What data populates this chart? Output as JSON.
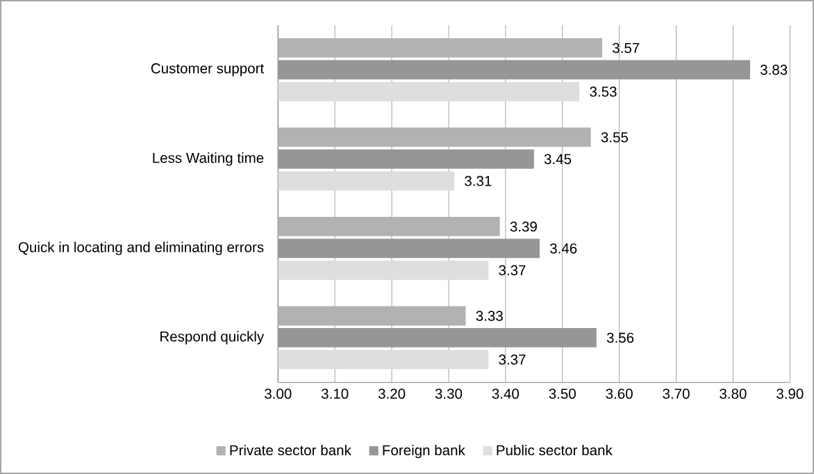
{
  "chart_data": {
    "type": "bar",
    "orientation": "horizontal",
    "categories": [
      "Customer support",
      "Less Waiting time",
      "Quick in locating and eliminating errors",
      "Respond quickly"
    ],
    "series": [
      {
        "name": "Private sector bank",
        "color": "#b2b2b2",
        "values": [
          3.57,
          3.55,
          3.39,
          3.33
        ]
      },
      {
        "name": "Foreign bank",
        "color": "#969696",
        "values": [
          3.83,
          3.45,
          3.46,
          3.56
        ]
      },
      {
        "name": "Public sector bank",
        "color": "#dedede",
        "values": [
          3.53,
          3.31,
          3.37,
          3.37
        ]
      }
    ],
    "xlim": [
      3.0,
      3.9
    ],
    "xticks": [
      {
        "value": 3.0,
        "label": "3.00"
      },
      {
        "value": 3.1,
        "label": "3.10"
      },
      {
        "value": 3.2,
        "label": "3.20"
      },
      {
        "value": 3.3,
        "label": "3.30"
      },
      {
        "value": 3.4,
        "label": "3.40"
      },
      {
        "value": 3.5,
        "label": "3.50"
      },
      {
        "value": 3.6,
        "label": "3.60"
      },
      {
        "value": 3.7,
        "label": "3.70"
      },
      {
        "value": 3.8,
        "label": "3.80"
      },
      {
        "value": 3.9,
        "label": "3.90"
      }
    ],
    "grid": "x",
    "legend": "bottom",
    "data_labels": true
  }
}
